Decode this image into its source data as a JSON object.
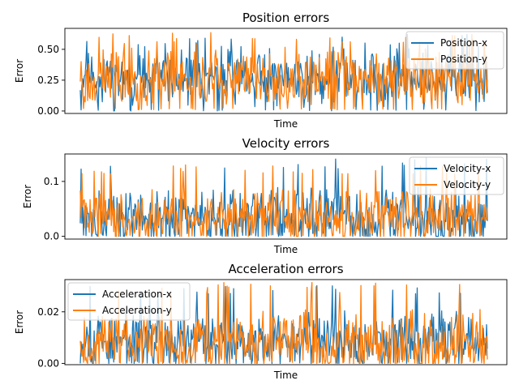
{
  "chart_data": [
    {
      "type": "line",
      "title": "Position errors",
      "xlabel": "Time",
      "ylabel": "Error",
      "ylim": [
        -0.02,
        0.67
      ],
      "yticks": [
        0.0,
        0.25,
        0.5
      ],
      "ytick_labels": [
        "0.00",
        "0.25",
        "0.50"
      ],
      "legend_position": "top-right",
      "grid": false,
      "n_points": 500,
      "series": [
        {
          "name": "Position-x",
          "color": "#1f77b4",
          "mean": 0.27,
          "min": 0.0,
          "max": 0.63,
          "noise_seed": 11
        },
        {
          "name": "Position-y",
          "color": "#ff7f0e",
          "mean": 0.26,
          "min": 0.01,
          "max": 0.64,
          "noise_seed": 23
        }
      ]
    },
    {
      "type": "line",
      "title": "Velocity errors",
      "xlabel": "Time",
      "ylabel": "Error",
      "ylim": [
        -0.005,
        0.15
      ],
      "yticks": [
        0.0,
        0.1
      ],
      "ytick_labels": [
        "0.0",
        "0.1"
      ],
      "legend_position": "top-right",
      "grid": false,
      "n_points": 500,
      "series": [
        {
          "name": "Velocity-x",
          "color": "#1f77b4",
          "mean": 0.035,
          "min": 0.0,
          "max": 0.143,
          "noise_seed": 37
        },
        {
          "name": "Velocity-y",
          "color": "#ff7f0e",
          "mean": 0.034,
          "min": 0.0,
          "max": 0.13,
          "noise_seed": 41
        }
      ]
    },
    {
      "type": "line",
      "title": "Acceleration errors",
      "xlabel": "Time",
      "ylabel": "Error",
      "ylim": [
        -0.0005,
        0.0325
      ],
      "yticks": [
        0.0,
        0.02
      ],
      "ytick_labels": [
        "0.00",
        "0.02"
      ],
      "legend_position": "top-left",
      "grid": false,
      "n_points": 500,
      "series": [
        {
          "name": "Acceleration-x",
          "color": "#1f77b4",
          "mean": 0.0085,
          "min": 0.0,
          "max": 0.031,
          "noise_seed": 53
        },
        {
          "name": "Acceleration-y",
          "color": "#ff7f0e",
          "mean": 0.0083,
          "min": 0.0,
          "max": 0.0315,
          "noise_seed": 67
        }
      ]
    }
  ]
}
